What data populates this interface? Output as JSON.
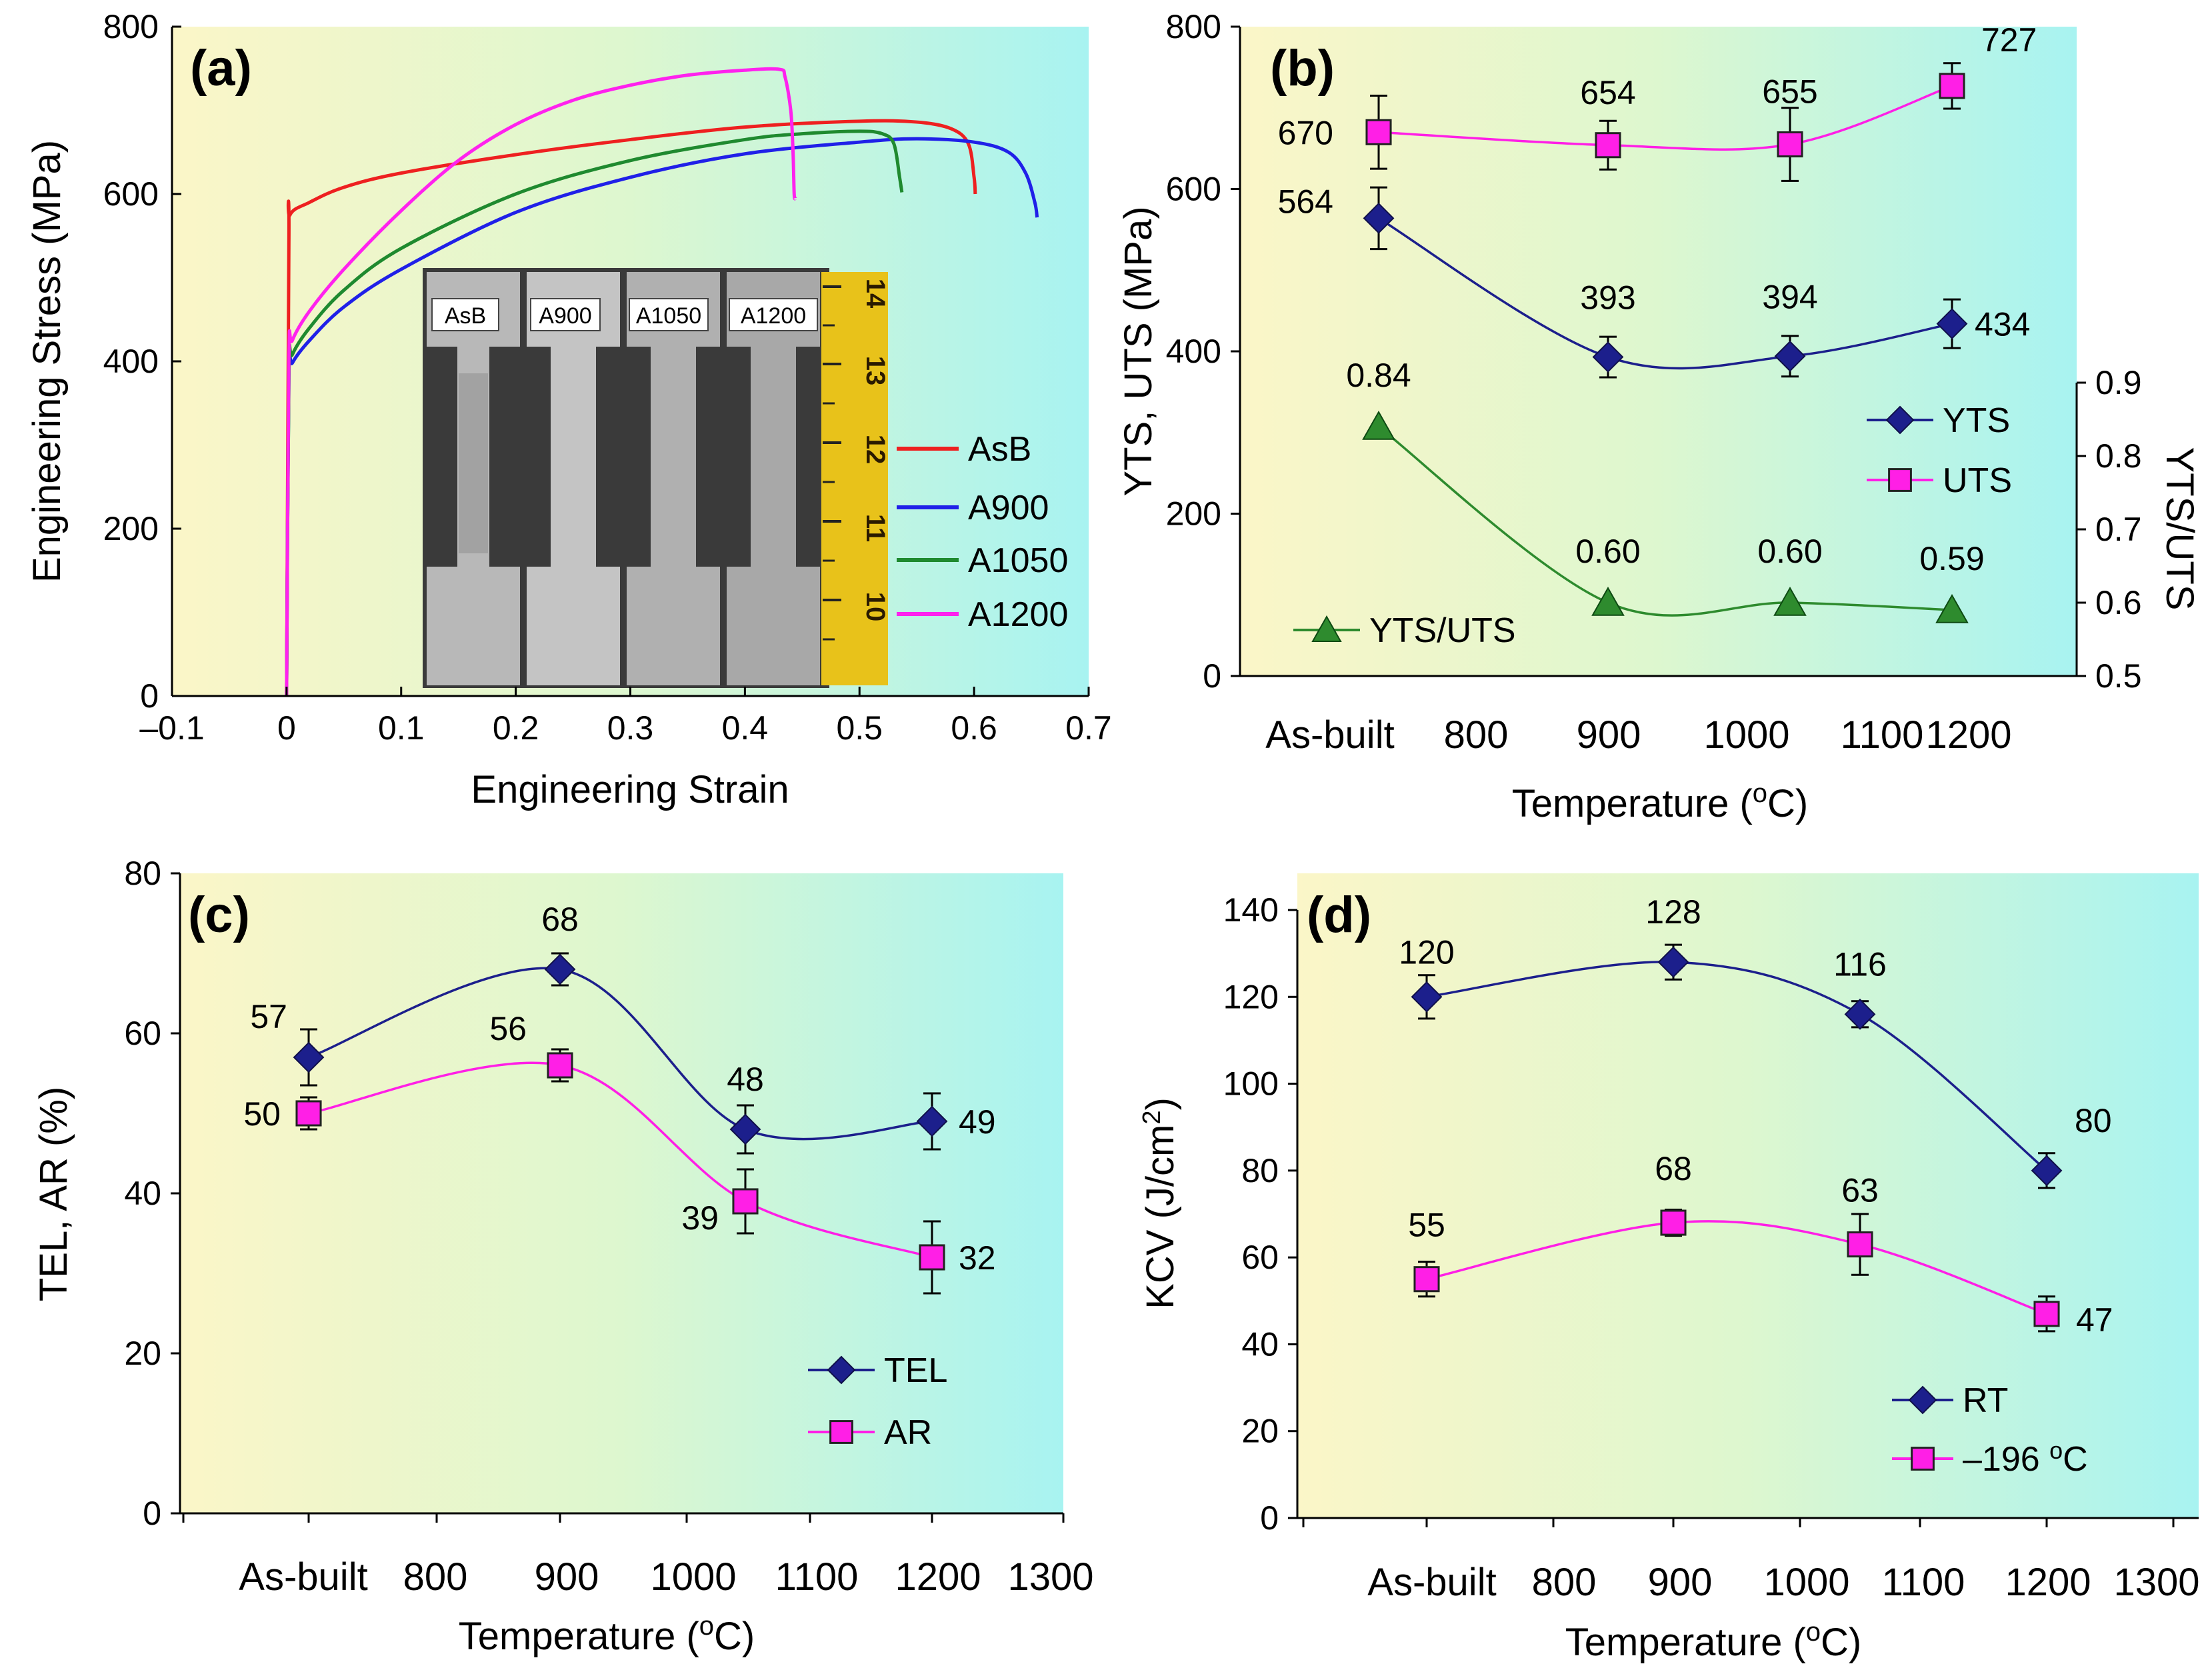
{
  "colors": {
    "bg_left": "#fbf6c8",
    "bg_mid": "#ddf7cf",
    "bg_right": "#a8f3f1",
    "navy": "#1c1f8c",
    "magenta": "#ff1fe6",
    "green": "#2e8b2e",
    "red": "#ee2020",
    "blue": "#2020e8",
    "dkgreen": "#1f8a2f",
    "pink": "#ff22ee"
  },
  "panel_a": {
    "label": "(a)",
    "inset": {
      "labels": [
        "AsB",
        "A900",
        "A1050",
        "A1200"
      ],
      "ruler_ticks": [
        "14",
        "13",
        "12",
        "11",
        "10"
      ]
    }
  },
  "panel_b": {
    "label": "(b)"
  },
  "panel_c": {
    "label": "(c)"
  },
  "panel_d": {
    "label": "(d)"
  },
  "chart_data": [
    {
      "id": "a",
      "type": "line",
      "xlabel": "Engineering Strain",
      "ylabel": "Engineering Stress (MPa)",
      "xlim": [
        -0.1,
        0.7
      ],
      "ylim": [
        0,
        800
      ],
      "xticks": [
        "–0.1",
        "0",
        "0.1",
        "0.2",
        "0.3",
        "0.4",
        "0.5",
        "0.6",
        "0.7"
      ],
      "yticks": [
        "0",
        "200",
        "400",
        "600",
        "800"
      ],
      "legend_position": "right",
      "series": [
        {
          "name": "AsB",
          "color": "#ee2020",
          "points": [
            [
              0,
              0
            ],
            [
              0.002,
              540
            ],
            [
              0.003,
              575
            ],
            [
              0.02,
              590
            ],
            [
              0.05,
              608
            ],
            [
              0.1,
              625
            ],
            [
              0.2,
              647
            ],
            [
              0.3,
              665
            ],
            [
              0.4,
              680
            ],
            [
              0.5,
              687
            ],
            [
              0.55,
              686
            ],
            [
              0.58,
              678
            ],
            [
              0.595,
              660
            ],
            [
              0.6,
              620
            ],
            [
              0.601,
              600
            ]
          ]
        },
        {
          "name": "A900",
          "color": "#2020e8",
          "points": [
            [
              0,
              0
            ],
            [
              0.002,
              380
            ],
            [
              0.005,
              398
            ],
            [
              0.02,
              425
            ],
            [
              0.05,
              465
            ],
            [
              0.1,
              510
            ],
            [
              0.2,
              578
            ],
            [
              0.3,
              620
            ],
            [
              0.4,
              648
            ],
            [
              0.5,
              662
            ],
            [
              0.55,
              666
            ],
            [
              0.6,
              662
            ],
            [
              0.63,
              650
            ],
            [
              0.645,
              625
            ],
            [
              0.653,
              590
            ],
            [
              0.655,
              572
            ]
          ]
        },
        {
          "name": "A1050",
          "color": "#1f8a2f",
          "points": [
            [
              0,
              0
            ],
            [
              0.002,
              385
            ],
            [
              0.005,
              408
            ],
            [
              0.02,
              440
            ],
            [
              0.05,
              485
            ],
            [
              0.1,
              535
            ],
            [
              0.2,
              600
            ],
            [
              0.3,
              640
            ],
            [
              0.4,
              665
            ],
            [
              0.45,
              672
            ],
            [
              0.5,
              675
            ],
            [
              0.52,
              672
            ],
            [
              0.53,
              660
            ],
            [
              0.535,
              620
            ],
            [
              0.537,
              602
            ]
          ]
        },
        {
          "name": "A1200",
          "color": "#ff22ee",
          "points": [
            [
              0,
              0
            ],
            [
              0.002,
              400
            ],
            [
              0.005,
              425
            ],
            [
              0.02,
              460
            ],
            [
              0.05,
              510
            ],
            [
              0.1,
              580
            ],
            [
              0.15,
              640
            ],
            [
              0.2,
              683
            ],
            [
              0.25,
              712
            ],
            [
              0.3,
              730
            ],
            [
              0.35,
              742
            ],
            [
              0.4,
              748
            ],
            [
              0.43,
              749
            ],
            [
              0.435,
              740
            ],
            [
              0.44,
              700
            ],
            [
              0.442,
              650
            ],
            [
              0.443,
              600
            ],
            [
              0.444,
              595
            ]
          ]
        }
      ]
    },
    {
      "id": "b",
      "type": "line",
      "xlabel": "Temperature (°C)",
      "xlabel_main": "Temperature (",
      "xlabel_unit": "C)",
      "xlabel_sup": "o",
      "ylabel": "YTS, UTS  (MPa)",
      "y2label": "YTS/UTS",
      "xticks": [
        "As-built",
        "800",
        "900",
        "1000",
        "1100",
        "1200"
      ],
      "yticks": [
        "0",
        "200",
        "400",
        "600",
        "800"
      ],
      "y2ticks": [
        "0.5",
        "0.6",
        "0.7",
        "0.8",
        "0.9"
      ],
      "ylim": [
        0,
        800
      ],
      "y2lim": [
        0.5,
        0.9
      ],
      "x": [
        "As-built",
        "900",
        "1050",
        "1200"
      ],
      "series": [
        {
          "name": "YTS",
          "color": "#1c1f8c",
          "marker": "diamond",
          "values": [
            564,
            393,
            394,
            434
          ],
          "err": [
            38,
            25,
            25,
            30
          ],
          "labels": [
            "564",
            "393",
            "394",
            "434"
          ]
        },
        {
          "name": "UTS",
          "color": "#ff1fe6",
          "marker": "square",
          "values": [
            670,
            654,
            655,
            727
          ],
          "err": [
            45,
            30,
            45,
            28
          ],
          "labels": [
            "670",
            "654",
            "655",
            "727"
          ]
        },
        {
          "name": "YTS/UTS",
          "color": "#2e8b2e",
          "marker": "triangle",
          "axis": "right",
          "values": [
            0.84,
            0.6,
            0.6,
            0.59
          ],
          "labels": [
            "0.84",
            "0.60",
            "0.60",
            "0.59"
          ]
        }
      ]
    },
    {
      "id": "c",
      "type": "line",
      "xlabel": "Temperature (°C)",
      "xlabel_main": "Temperature (",
      "xlabel_unit": "C)",
      "xlabel_sup": "o",
      "ylabel": "TEL, AR (%)",
      "xticks": [
        "As-built",
        "800",
        "900",
        "1000",
        "1100",
        "1200",
        "1300"
      ],
      "yticks": [
        "0",
        "20",
        "40",
        "60",
        "80"
      ],
      "ylim": [
        0,
        80
      ],
      "x": [
        "As-built",
        "900",
        "1050",
        "1200"
      ],
      "series": [
        {
          "name": "TEL",
          "color": "#1c1f8c",
          "marker": "diamond",
          "values": [
            57,
            68,
            48,
            49
          ],
          "err": [
            3.5,
            2,
            3,
            3.5
          ],
          "labels": [
            "57",
            "68",
            "48",
            "49"
          ]
        },
        {
          "name": "AR",
          "color": "#ff1fe6",
          "marker": "square",
          "values": [
            50,
            56,
            39,
            32
          ],
          "err": [
            2,
            2,
            4,
            4.5
          ],
          "labels": [
            "50",
            "56",
            "39",
            "32"
          ]
        }
      ]
    },
    {
      "id": "d",
      "type": "line",
      "xlabel": "Temperature (°C)",
      "xlabel_main": "Temperature (",
      "xlabel_unit": "C)",
      "xlabel_sup": "o",
      "ylabel": "KCV (J/cm²)",
      "ylabel_main": "KCV (J/cm",
      "ylabel_sup": "2",
      "ylabel_end": ")",
      "xticks": [
        "As-built",
        "800",
        "900",
        "1000",
        "1100",
        "1200",
        "1300"
      ],
      "yticks": [
        "0",
        "20",
        "40",
        "60",
        "80",
        "100",
        "120",
        "140"
      ],
      "ylim": [
        0,
        140
      ],
      "x": [
        "As-built",
        "900",
        "1050",
        "1200"
      ],
      "series": [
        {
          "name": "RT",
          "color": "#1c1f8c",
          "marker": "diamond",
          "values": [
            120,
            128,
            116,
            80
          ],
          "err": [
            5,
            4,
            3,
            4
          ],
          "labels": [
            "120",
            "128",
            "116",
            "80"
          ]
        },
        {
          "name": "–196 °C",
          "legend_main": "–196 ",
          "legend_sup": "o",
          "legend_end": "C",
          "color": "#ff1fe6",
          "marker": "square",
          "values": [
            55,
            68,
            63,
            47
          ],
          "err": [
            4,
            3,
            7,
            4
          ],
          "labels": [
            "55",
            "68",
            "63",
            "47"
          ]
        }
      ]
    }
  ]
}
